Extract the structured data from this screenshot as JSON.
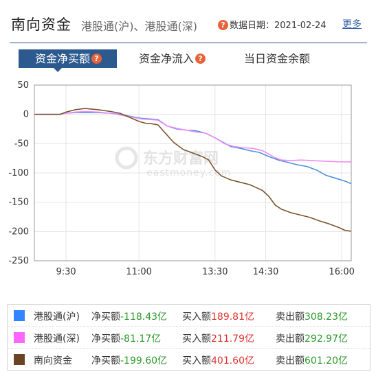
{
  "header": {
    "title": "南向资金",
    "subtitle": "港股通(沪)、港股通(深)",
    "date_label": "数据日期：2021-02-24",
    "more_label": "更多"
  },
  "tabs": [
    {
      "label": "资金净买额",
      "active": true,
      "has_help": true
    },
    {
      "label": "资金净流入",
      "active": false,
      "has_help": true
    },
    {
      "label": "当日资金余额",
      "active": false,
      "has_help": false
    }
  ],
  "watermark": {
    "cn": "东方财富网",
    "en": "eastmoney.com"
  },
  "chart_data": {
    "type": "line",
    "y_ticks": [
      "50",
      "0",
      "-50",
      "-100",
      "-150",
      "-200",
      "-250"
    ],
    "x_ticks": [
      "9:30",
      "11:00",
      "13:30",
      "14:30",
      "16:00"
    ],
    "ylim": [
      -250,
      50
    ],
    "xlim": [
      0,
      100
    ],
    "grid": true,
    "series": [
      {
        "name": "港股通(沪)",
        "color": "#4a90e2",
        "points": [
          [
            0,
            0
          ],
          [
            8,
            0
          ],
          [
            10,
            2
          ],
          [
            13,
            3
          ],
          [
            16,
            3
          ],
          [
            20,
            3
          ],
          [
            24,
            2
          ],
          [
            27,
            0
          ],
          [
            31,
            -4
          ],
          [
            34,
            -7
          ],
          [
            37,
            -8
          ],
          [
            39,
            -9
          ],
          [
            42,
            -20
          ],
          [
            45,
            -25
          ],
          [
            48,
            -27
          ],
          [
            51,
            -28
          ],
          [
            54,
            -32
          ],
          [
            57,
            -40
          ],
          [
            59,
            -46
          ],
          [
            62,
            -55
          ],
          [
            65,
            -58
          ],
          [
            68,
            -62
          ],
          [
            71,
            -65
          ],
          [
            74,
            -72
          ],
          [
            77,
            -78
          ],
          [
            80,
            -82
          ],
          [
            83,
            -86
          ],
          [
            86,
            -89
          ],
          [
            89,
            -95
          ],
          [
            92,
            -104
          ],
          [
            95,
            -109
          ],
          [
            98,
            -114
          ],
          [
            100,
            -118.43
          ]
        ]
      },
      {
        "name": "港股通(深)",
        "color": "#f28cf0",
        "points": [
          [
            0,
            0
          ],
          [
            8,
            0
          ],
          [
            10,
            2
          ],
          [
            13,
            4
          ],
          [
            16,
            5
          ],
          [
            20,
            4
          ],
          [
            24,
            2
          ],
          [
            27,
            -1
          ],
          [
            31,
            -5
          ],
          [
            34,
            -8
          ],
          [
            37,
            -9
          ],
          [
            39,
            -10
          ],
          [
            42,
            -20
          ],
          [
            45,
            -24
          ],
          [
            48,
            -27
          ],
          [
            51,
            -30
          ],
          [
            54,
            -32
          ],
          [
            57,
            -40
          ],
          [
            60,
            -50
          ],
          [
            63,
            -55
          ],
          [
            66,
            -57
          ],
          [
            69,
            -58
          ],
          [
            72,
            -62
          ],
          [
            74,
            -68
          ],
          [
            76,
            -74
          ],
          [
            78,
            -78
          ],
          [
            81,
            -79
          ],
          [
            84,
            -78
          ],
          [
            88,
            -79
          ],
          [
            92,
            -80
          ],
          [
            96,
            -81
          ],
          [
            100,
            -81.17
          ]
        ]
      },
      {
        "name": "南向资金",
        "color": "#7a5530",
        "points": [
          [
            0,
            0
          ],
          [
            8,
            0
          ],
          [
            10,
            4
          ],
          [
            13,
            8
          ],
          [
            16,
            10
          ],
          [
            20,
            8
          ],
          [
            24,
            5
          ],
          [
            27,
            2
          ],
          [
            30,
            -5
          ],
          [
            33,
            -12
          ],
          [
            35,
            -15
          ],
          [
            37,
            -16
          ],
          [
            39,
            -18
          ],
          [
            41,
            -30
          ],
          [
            44,
            -48
          ],
          [
            47,
            -60
          ],
          [
            50,
            -66
          ],
          [
            53,
            -72
          ],
          [
            55,
            -78
          ],
          [
            57,
            -95
          ],
          [
            59,
            -105
          ],
          [
            62,
            -112
          ],
          [
            65,
            -116
          ],
          [
            68,
            -120
          ],
          [
            70,
            -125
          ],
          [
            72,
            -130
          ],
          [
            74,
            -140
          ],
          [
            76,
            -155
          ],
          [
            78,
            -162
          ],
          [
            81,
            -168
          ],
          [
            84,
            -172
          ],
          [
            87,
            -176
          ],
          [
            90,
            -182
          ],
          [
            93,
            -187
          ],
          [
            96,
            -193
          ],
          [
            98,
            -198
          ],
          [
            100,
            -199.6
          ]
        ]
      }
    ]
  },
  "legend": [
    {
      "name": "港股通(沪)",
      "color": "#3385ff",
      "net_label": "净买额",
      "net_value": "-118.43亿",
      "buy_label": "买入额",
      "buy_value": "189.81亿",
      "sell_label": "卖出额",
      "sell_value": "308.23亿"
    },
    {
      "name": "港股通(深)",
      "color": "#ff66ff",
      "net_label": "净买额",
      "net_value": "-81.17亿",
      "buy_label": "买入额",
      "buy_value": "211.79亿",
      "sell_label": "卖出额",
      "sell_value": "292.97亿"
    },
    {
      "name": "南向资金",
      "color": "#6b4423",
      "net_label": "净买额",
      "net_value": "-199.60亿",
      "buy_label": "买入额",
      "buy_value": "401.60亿",
      "sell_label": "卖出额",
      "sell_value": "601.20亿"
    }
  ]
}
